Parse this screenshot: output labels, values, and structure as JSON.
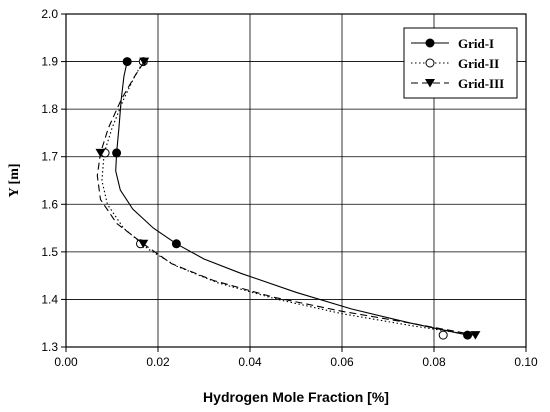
{
  "chart_data": {
    "type": "line",
    "xlabel": "Hydrogen Mole Fraction [%]",
    "ylabel": "Y [m]",
    "xlim": [
      0.0,
      0.1
    ],
    "ylim": [
      1.3,
      2.0
    ],
    "x_ticks": [
      "0.00",
      "0.02",
      "0.04",
      "0.06",
      "0.08",
      "0.10"
    ],
    "y_ticks": [
      "1.3",
      "1.4",
      "1.5",
      "1.6",
      "1.7",
      "1.8",
      "1.9",
      "2.0"
    ],
    "grid": true,
    "legend_position": "top-right",
    "series": [
      {
        "name": "Grid-I",
        "marker": "filled-circle",
        "line_style": "solid",
        "points": [
          {
            "x": 0.0873,
            "y": 1.325
          },
          {
            "x": 0.024,
            "y": 1.517
          },
          {
            "x": 0.011,
            "y": 1.708
          },
          {
            "x": 0.0133,
            "y": 1.9
          }
        ],
        "curve": [
          {
            "x": 0.0873,
            "y": 1.325
          },
          {
            "x": 0.075,
            "y": 1.35
          },
          {
            "x": 0.062,
            "y": 1.38
          },
          {
            "x": 0.05,
            "y": 1.415
          },
          {
            "x": 0.038,
            "y": 1.455
          },
          {
            "x": 0.03,
            "y": 1.485
          },
          {
            "x": 0.024,
            "y": 1.517
          },
          {
            "x": 0.019,
            "y": 1.55
          },
          {
            "x": 0.0145,
            "y": 1.59
          },
          {
            "x": 0.0118,
            "y": 1.63
          },
          {
            "x": 0.0108,
            "y": 1.67
          },
          {
            "x": 0.011,
            "y": 1.708
          },
          {
            "x": 0.0115,
            "y": 1.76
          },
          {
            "x": 0.012,
            "y": 1.82
          },
          {
            "x": 0.0126,
            "y": 1.87
          },
          {
            "x": 0.0133,
            "y": 1.9
          }
        ]
      },
      {
        "name": "Grid-II",
        "marker": "open-circle",
        "line_style": "dotted",
        "points": [
          {
            "x": 0.082,
            "y": 1.325
          },
          {
            "x": 0.0162,
            "y": 1.517
          },
          {
            "x": 0.0085,
            "y": 1.708
          },
          {
            "x": 0.0168,
            "y": 1.9
          }
        ],
        "curve": [
          {
            "x": 0.0885,
            "y": 1.325
          },
          {
            "x": 0.075,
            "y": 1.345
          },
          {
            "x": 0.06,
            "y": 1.37
          },
          {
            "x": 0.046,
            "y": 1.4
          },
          {
            "x": 0.033,
            "y": 1.435
          },
          {
            "x": 0.024,
            "y": 1.47
          },
          {
            "x": 0.018,
            "y": 1.505
          },
          {
            "x": 0.0125,
            "y": 1.55
          },
          {
            "x": 0.009,
            "y": 1.6
          },
          {
            "x": 0.0078,
            "y": 1.65
          },
          {
            "x": 0.0083,
            "y": 1.708
          },
          {
            "x": 0.01,
            "y": 1.76
          },
          {
            "x": 0.0125,
            "y": 1.82
          },
          {
            "x": 0.015,
            "y": 1.87
          },
          {
            "x": 0.0168,
            "y": 1.9
          }
        ]
      },
      {
        "name": "Grid-III",
        "marker": "filled-triangle-down",
        "line_style": "dashed",
        "points": [
          {
            "x": 0.089,
            "y": 1.325
          },
          {
            "x": 0.0168,
            "y": 1.517
          },
          {
            "x": 0.0075,
            "y": 1.708
          },
          {
            "x": 0.017,
            "y": 1.9
          }
        ],
        "curve": [
          {
            "x": 0.089,
            "y": 1.325
          },
          {
            "x": 0.075,
            "y": 1.35
          },
          {
            "x": 0.06,
            "y": 1.375
          },
          {
            "x": 0.045,
            "y": 1.405
          },
          {
            "x": 0.032,
            "y": 1.44
          },
          {
            "x": 0.023,
            "y": 1.475
          },
          {
            "x": 0.0168,
            "y": 1.517
          },
          {
            "x": 0.011,
            "y": 1.56
          },
          {
            "x": 0.0075,
            "y": 1.61
          },
          {
            "x": 0.0068,
            "y": 1.66
          },
          {
            "x": 0.0075,
            "y": 1.708
          },
          {
            "x": 0.0092,
            "y": 1.76
          },
          {
            "x": 0.012,
            "y": 1.82
          },
          {
            "x": 0.015,
            "y": 1.87
          },
          {
            "x": 0.017,
            "y": 1.9
          }
        ]
      }
    ]
  }
}
